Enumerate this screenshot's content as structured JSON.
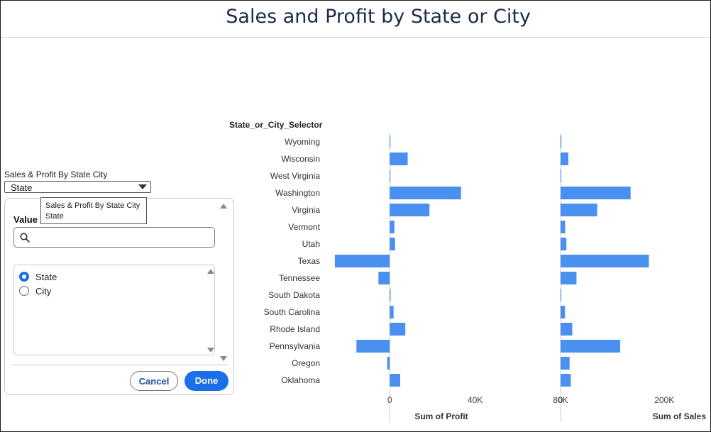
{
  "header": {
    "title": "Sales and Profit by State or City"
  },
  "filter": {
    "label": "Sales & Profit By State City",
    "selected_value": "State",
    "panel": {
      "value_label": "Value",
      "search_placeholder": "",
      "options": [
        {
          "label": "State",
          "checked": true
        },
        {
          "label": "City",
          "checked": false
        }
      ],
      "cancel_label": "Cancel",
      "done_label": "Done"
    },
    "tooltip": {
      "line1": "Sales & Profit By State City",
      "line2": "State"
    }
  },
  "chart_data": {
    "type": "bar",
    "orientation": "horizontal",
    "row_header": "State_or_City_Selector",
    "categories": [
      "Wyoming",
      "Wisconsin",
      "West Virginia",
      "Washington",
      "Virginia",
      "Vermont",
      "Utah",
      "Texas",
      "Tennessee",
      "South Dakota",
      "South Carolina",
      "Rhode Island",
      "Pennsylvania",
      "Oregon",
      "Oklahoma"
    ],
    "panels": [
      {
        "name": "Sum of Profit",
        "values": [
          100,
          8400,
          200,
          33400,
          18600,
          2200,
          2500,
          -25700,
          -5300,
          400,
          1800,
          7300,
          -15600,
          -1200,
          4900
        ],
        "xlim": [
          -26000,
          80000
        ],
        "ticks": [
          0,
          40000,
          80000
        ],
        "tick_labels": [
          "0",
          "40K",
          "80K"
        ]
      },
      {
        "name": "Sum of Sales",
        "values": [
          1600,
          15000,
          1200,
          135000,
          70600,
          8900,
          11200,
          170200,
          30700,
          1300,
          8500,
          22600,
          115000,
          17400,
          19700
        ],
        "xlim": [
          0,
          290000
        ],
        "ticks": [
          0,
          200000
        ],
        "tick_labels": [
          "0",
          "200K"
        ]
      }
    ],
    "bar_color": "#4a90f0",
    "grid": false
  }
}
